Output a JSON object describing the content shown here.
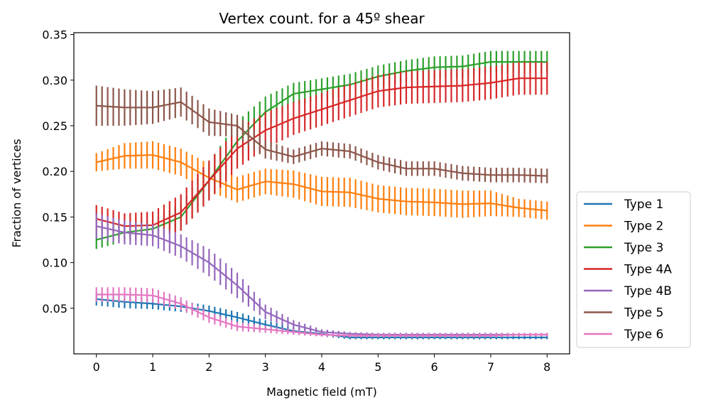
{
  "chart_data": {
    "type": "line",
    "title": "Vertex count. for a 45º shear",
    "xlabel": "Magnetic field (mT)",
    "ylabel": "Fraction of vertices",
    "xlim": [
      -0.4,
      8.4
    ],
    "ylim": [
      0.0,
      0.352
    ],
    "xticks": [
      0,
      1,
      2,
      3,
      4,
      5,
      6,
      7,
      8
    ],
    "xtick_labels": [
      "0",
      "1",
      "2",
      "3",
      "4",
      "5",
      "6",
      "7",
      "8"
    ],
    "yticks": [
      0.05,
      0.1,
      0.15,
      0.2,
      0.25,
      0.3,
      0.35
    ],
    "ytick_labels": [
      "0.05",
      "0.10",
      "0.15",
      "0.20",
      "0.25",
      "0.30",
      "0.35"
    ],
    "grid": false,
    "legend_position": "outside-right-bottom",
    "error_bars": true,
    "x": [
      0,
      0.5,
      1,
      1.5,
      2,
      2.5,
      3,
      3.5,
      4,
      4.5,
      5,
      5.5,
      6,
      6.5,
      7,
      7.5,
      8
    ],
    "series": [
      {
        "name": "Type 1",
        "color": "#1f77b4",
        "values": [
          0.06,
          0.057,
          0.055,
          0.052,
          0.047,
          0.04,
          0.032,
          0.025,
          0.022,
          0.018,
          0.018,
          0.018,
          0.018,
          0.018,
          0.018,
          0.018,
          0.018
        ],
        "error": [
          0.007,
          0.007,
          0.006,
          0.006,
          0.006,
          0.006,
          0.005,
          0.004,
          0.003,
          0.002,
          0.002,
          0.002,
          0.002,
          0.002,
          0.002,
          0.002,
          0.002
        ]
      },
      {
        "name": "Type 2",
        "color": "#ff7f0e",
        "values": [
          0.21,
          0.217,
          0.218,
          0.21,
          0.193,
          0.18,
          0.189,
          0.186,
          0.178,
          0.177,
          0.17,
          0.167,
          0.166,
          0.164,
          0.165,
          0.16,
          0.157
        ],
        "error": [
          0.01,
          0.014,
          0.015,
          0.015,
          0.015,
          0.014,
          0.014,
          0.015,
          0.016,
          0.016,
          0.015,
          0.015,
          0.015,
          0.015,
          0.014,
          0.01,
          0.01
        ]
      },
      {
        "name": "Type 3",
        "color": "#2ca02c",
        "values": [
          0.125,
          0.133,
          0.137,
          0.15,
          0.19,
          0.233,
          0.265,
          0.285,
          0.29,
          0.295,
          0.304,
          0.31,
          0.314,
          0.315,
          0.32,
          0.32,
          0.32
        ],
        "error": [
          0.01,
          0.01,
          0.01,
          0.014,
          0.02,
          0.022,
          0.017,
          0.012,
          0.012,
          0.012,
          0.012,
          0.012,
          0.012,
          0.012,
          0.012,
          0.012,
          0.012
        ]
      },
      {
        "name": "Type 4A",
        "color": "#d62728",
        "values": [
          0.148,
          0.14,
          0.141,
          0.155,
          0.19,
          0.225,
          0.245,
          0.258,
          0.268,
          0.278,
          0.288,
          0.292,
          0.293,
          0.294,
          0.297,
          0.302,
          0.302
        ],
        "error": [
          0.015,
          0.014,
          0.015,
          0.02,
          0.022,
          0.022,
          0.02,
          0.018,
          0.018,
          0.018,
          0.018,
          0.018,
          0.018,
          0.018,
          0.018,
          0.018,
          0.018
        ]
      },
      {
        "name": "Type 4B",
        "color": "#9467bd",
        "values": [
          0.14,
          0.133,
          0.13,
          0.118,
          0.1,
          0.075,
          0.046,
          0.032,
          0.024,
          0.022,
          0.021,
          0.021,
          0.021,
          0.021,
          0.021,
          0.021,
          0.021
        ],
        "error": [
          0.014,
          0.013,
          0.012,
          0.013,
          0.015,
          0.014,
          0.008,
          0.005,
          0.003,
          0.002,
          0.002,
          0.002,
          0.002,
          0.002,
          0.002,
          0.002,
          0.002
        ]
      },
      {
        "name": "Type 5",
        "color": "#8c564b",
        "values": [
          0.272,
          0.27,
          0.27,
          0.276,
          0.254,
          0.25,
          0.224,
          0.216,
          0.225,
          0.222,
          0.21,
          0.203,
          0.203,
          0.198,
          0.196,
          0.196,
          0.195
        ],
        "error": [
          0.022,
          0.02,
          0.018,
          0.016,
          0.015,
          0.012,
          0.01,
          0.008,
          0.008,
          0.008,
          0.008,
          0.008,
          0.008,
          0.008,
          0.008,
          0.008,
          0.008
        ]
      },
      {
        "name": "Type 6",
        "color": "#e377c2",
        "values": [
          0.065,
          0.065,
          0.064,
          0.055,
          0.04,
          0.03,
          0.027,
          0.024,
          0.021,
          0.02,
          0.02,
          0.02,
          0.02,
          0.02,
          0.02,
          0.021,
          0.021
        ],
        "error": [
          0.008,
          0.008,
          0.008,
          0.007,
          0.006,
          0.005,
          0.004,
          0.003,
          0.002,
          0.002,
          0.002,
          0.002,
          0.002,
          0.002,
          0.002,
          0.002,
          0.002
        ]
      }
    ]
  }
}
